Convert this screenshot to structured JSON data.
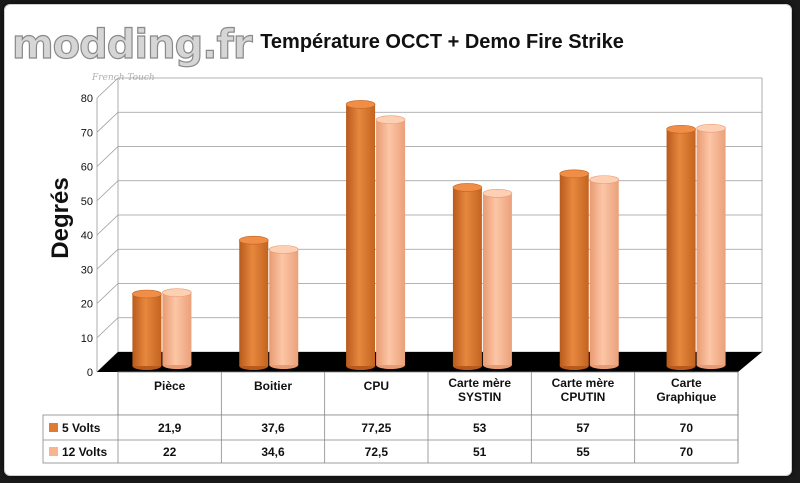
{
  "watermark": {
    "logo": "modding.fr",
    "tagline": "French Touch"
  },
  "chart_data": {
    "type": "bar",
    "title": "Température OCCT + Demo Fire Strike",
    "ylabel": "Degrés",
    "xlabel": "",
    "ylim": [
      0,
      80
    ],
    "yticks": [
      0,
      10,
      20,
      30,
      40,
      50,
      60,
      70,
      80
    ],
    "categories": [
      [
        "Pièce"
      ],
      [
        "Boitier"
      ],
      [
        "CPU"
      ],
      [
        "Carte mère",
        "SYSTIN"
      ],
      [
        "Carte mère",
        "CPUTIN"
      ],
      [
        "Carte",
        "Graphique"
      ]
    ],
    "series": [
      {
        "name": "5 Volts",
        "color": "#e07b36",
        "values": [
          21.9,
          37.6,
          77.25,
          53,
          57,
          70
        ],
        "labels": [
          "21,9",
          "37,6",
          "77,25",
          "53",
          "57",
          "70"
        ]
      },
      {
        "name": "12 Volts",
        "color": "#f7b48e",
        "values": [
          22,
          34.6,
          72.5,
          51,
          55,
          70
        ],
        "labels": [
          "22",
          "34,6",
          "72,5",
          "51",
          "55",
          "70"
        ]
      }
    ],
    "grid": true,
    "legend": "data-table"
  }
}
